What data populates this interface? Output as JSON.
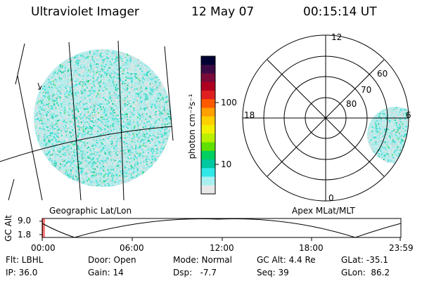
{
  "header": {
    "instrument": "Ultraviolet Imager",
    "date": "12 May 07",
    "time": "00:15:14 UT"
  },
  "geo_panel": {
    "label": "Geographic Lat/Lon"
  },
  "colorbar": {
    "unit_label": "photon cm⁻²s⁻¹",
    "scale": "log",
    "ticks": [
      "100",
      "10"
    ],
    "colors": [
      "#000033",
      "#3b0a45",
      "#7a0a3a",
      "#b00020",
      "#e02020",
      "#ff5a00",
      "#ffa000",
      "#ffd000",
      "#f0f000",
      "#b8f000",
      "#60e000",
      "#00d060",
      "#00c8a0",
      "#30e8e8",
      "#a8f0f0",
      "#e8e8e8"
    ]
  },
  "polar_panel": {
    "label": "Apex MLat/MLT",
    "mlt_labels": {
      "top": "12",
      "left": "18",
      "right": "6",
      "bottom": "0"
    },
    "lat_labels": [
      "60",
      "70",
      "80"
    ]
  },
  "altitude_plot": {
    "ylabel": "GC Alt",
    "yticks": [
      "9.0",
      "1.8"
    ],
    "xticks": [
      "00:00",
      "06:00",
      "12:00",
      "18:00",
      "23:59"
    ]
  },
  "footer": {
    "row1": [
      "Flt: LBHL",
      "Door: Open",
      "Mode: Normal",
      "GC Alt: 4.4 Re",
      "GLat: -35.1"
    ],
    "row2": [
      "IP: 36.0",
      "Gain: 14",
      "Dsp:   -7.7",
      "Seq: 39",
      "GLon:  86.2"
    ]
  }
}
